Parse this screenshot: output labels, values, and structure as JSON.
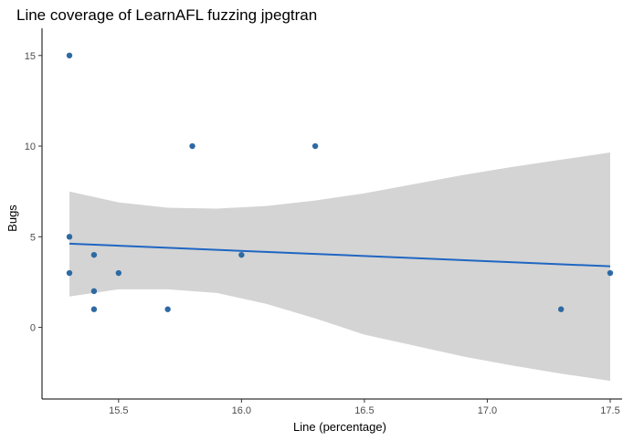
{
  "chart_data": {
    "type": "scatter",
    "title": "Line coverage of LearnAFL fuzzing jpegtran",
    "xlabel": "Line (percentage)",
    "ylabel": "Bugs",
    "xlim": [
      15.3,
      17.5
    ],
    "ylim": [
      -3.95,
      16.5
    ],
    "xticks": [
      15.5,
      16.0,
      16.5,
      17.0,
      17.5
    ],
    "xtick_labels": [
      "15.5",
      "16.0",
      "16.5",
      "17.0",
      "17.5"
    ],
    "yticks": [
      0,
      5,
      10,
      15
    ],
    "ytick_labels": [
      "0",
      "5",
      "10",
      "15"
    ],
    "grid": false,
    "points": [
      {
        "x": 15.3,
        "y": 15
      },
      {
        "x": 15.3,
        "y": 5
      },
      {
        "x": 15.3,
        "y": 3
      },
      {
        "x": 15.4,
        "y": 4
      },
      {
        "x": 15.4,
        "y": 2
      },
      {
        "x": 15.4,
        "y": 1
      },
      {
        "x": 15.5,
        "y": 3
      },
      {
        "x": 15.7,
        "y": 1
      },
      {
        "x": 15.8,
        "y": 10
      },
      {
        "x": 16.0,
        "y": 4
      },
      {
        "x": 16.3,
        "y": 10
      },
      {
        "x": 17.3,
        "y": 1
      },
      {
        "x": 17.5,
        "y": 3
      }
    ],
    "trend_line": {
      "method": "lm",
      "x": [
        15.3,
        17.5
      ],
      "y": [
        4.62,
        3.37
      ]
    },
    "confidence_band": {
      "x": [
        15.3,
        15.5,
        15.7,
        15.9,
        16.1,
        16.3,
        16.5,
        16.7,
        16.9,
        17.1,
        17.3,
        17.5
      ],
      "upper": [
        7.5,
        6.9,
        6.6,
        6.55,
        6.7,
        7.0,
        7.4,
        7.9,
        8.4,
        8.85,
        9.25,
        9.65
      ],
      "lower": [
        1.7,
        2.1,
        2.1,
        1.9,
        1.3,
        0.5,
        -0.4,
        -1.0,
        -1.6,
        -2.1,
        -2.55,
        -2.95
      ]
    },
    "colors": {
      "points": "#2d6aa3",
      "line": "#1f66c2",
      "band": "#d4d4d4"
    }
  }
}
